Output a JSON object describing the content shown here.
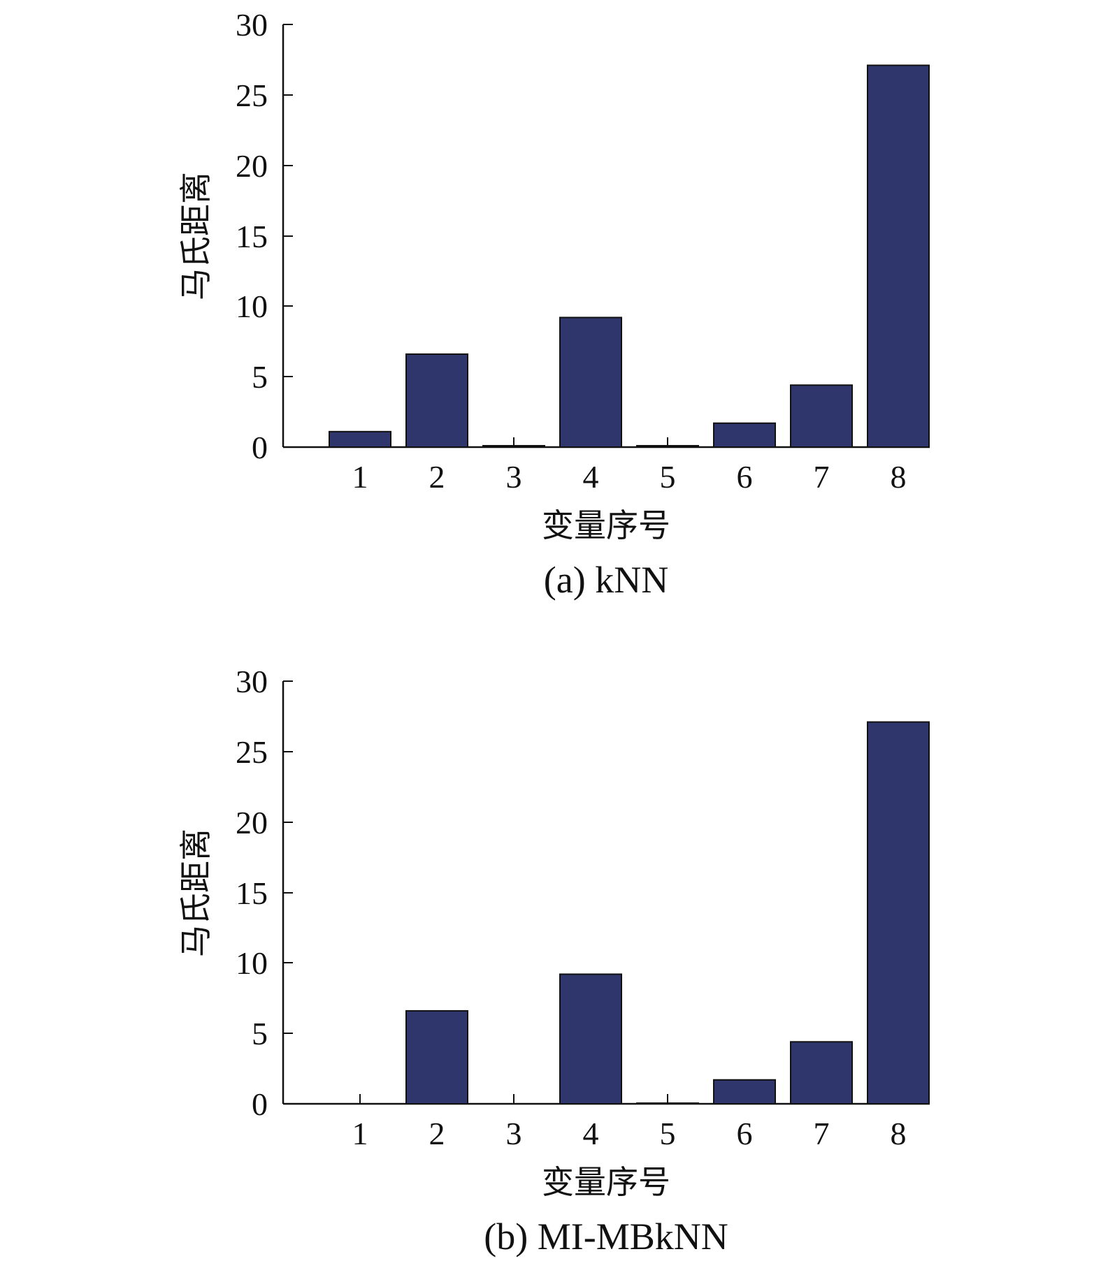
{
  "colors": {
    "bar_fill": "#2f366b",
    "axis": "#111111"
  },
  "chart_data": [
    {
      "type": "bar",
      "caption": "(a) kNN",
      "xlabel": "变量序号",
      "ylabel": "马氏距离",
      "categories": [
        "1",
        "2",
        "3",
        "4",
        "5",
        "6",
        "7",
        "8"
      ],
      "values": [
        1.1,
        6.6,
        0.1,
        9.2,
        0.1,
        1.7,
        4.4,
        27.1
      ],
      "ylim": [
        0,
        30
      ],
      "yticks": [
        "0",
        "5",
        "10",
        "15",
        "20",
        "25",
        "30"
      ],
      "grid": false,
      "legend": "none"
    },
    {
      "type": "bar",
      "caption": "(b) MI-MBkNN",
      "xlabel": "变量序号",
      "ylabel": "马氏距离",
      "categories": [
        "1",
        "2",
        "3",
        "4",
        "5",
        "6",
        "7",
        "8"
      ],
      "values": [
        0,
        6.6,
        0,
        9.2,
        0.05,
        1.7,
        4.4,
        27.1
      ],
      "ylim": [
        0,
        30
      ],
      "yticks": [
        "0",
        "5",
        "10",
        "15",
        "20",
        "25",
        "30"
      ],
      "grid": false,
      "legend": "none"
    }
  ]
}
